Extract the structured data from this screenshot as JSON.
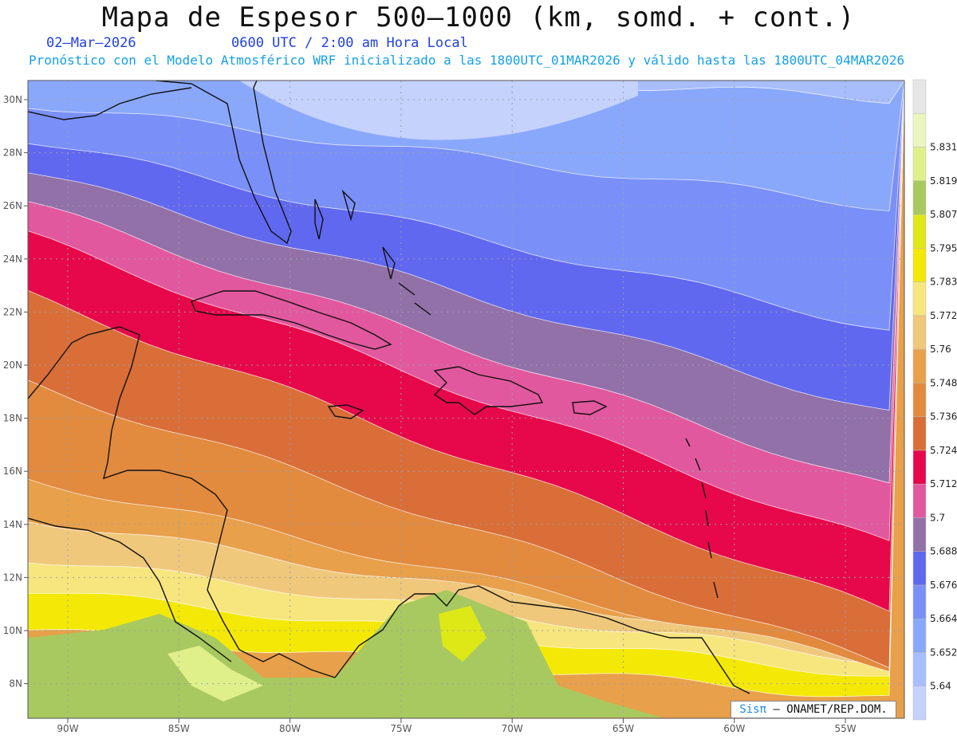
{
  "header": {
    "title": "Mapa de Espesor 500–1000 (km, somd. + cont.)",
    "date": "02–Mar–2026",
    "time": "0600 UTC / 2:00 am Hora Local",
    "forecast": "Pronóstico con el Modelo Atmosférico WRF inicializado a las 1800UTC_01MAR2026 y válido hasta las  1800UTC_04MAR2026"
  },
  "map": {
    "lat_labels": [
      "30N",
      "28N",
      "26N",
      "24N",
      "22N",
      "20N",
      "18N",
      "16N",
      "14N",
      "12N",
      "10N",
      "8N"
    ],
    "lon_labels": [
      "90W",
      "85W",
      "80W",
      "75W",
      "70W",
      "65W",
      "60W",
      "55W"
    ]
  },
  "colorbar": {
    "levels": [
      "5.64",
      "5.652",
      "5.664",
      "5.676",
      "5.688",
      "5.7",
      "5.712",
      "5.724",
      "5.736",
      "5.748",
      "5.76",
      "5.772",
      "5.783",
      "5.795",
      "5.807",
      "5.819",
      "5.831"
    ],
    "colors": [
      "#c4d2fc",
      "#a8bdfb",
      "#8aa8fb",
      "#7a90f8",
      "#6068ef",
      "#9270a8",
      "#e2589e",
      "#e6084a",
      "#d96e38",
      "#e28a3e",
      "#e8a04a",
      "#f0c87c",
      "#f7e57e",
      "#f4e806",
      "#dfe817",
      "#a8c960",
      "#dff08a",
      "#ebf5c0",
      "#e6e6e6"
    ]
  },
  "credit": {
    "brand": "Sisπ",
    "org": "– ONAMET/REP.DOM."
  }
}
